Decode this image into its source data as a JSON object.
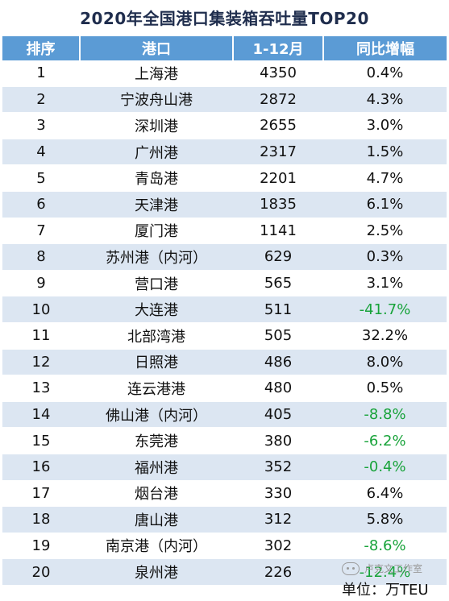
{
  "title": "2020年全国港口集装箱吞吐量TOP20",
  "headers": [
    "排序",
    "港口",
    "1-12月",
    "同比增幅"
  ],
  "rows": [
    {
      "rank": "1",
      "port": "上海港",
      "volume": "4350",
      "growth": "0.4%"
    },
    {
      "rank": "2",
      "port": "宁波舟山港",
      "volume": "2872",
      "growth": "4.3%"
    },
    {
      "rank": "3",
      "port": "深圳港",
      "volume": "2655",
      "growth": "3.0%"
    },
    {
      "rank": "4",
      "port": "广州港",
      "volume": "2317",
      "growth": "1.5%"
    },
    {
      "rank": "5",
      "port": "青岛港",
      "volume": "2201",
      "growth": "4.7%"
    },
    {
      "rank": "6",
      "port": "天津港",
      "volume": "1835",
      "growth": "6.1%"
    },
    {
      "rank": "7",
      "port": "厦门港",
      "volume": "1141",
      "growth": "2.5%"
    },
    {
      "rank": "8",
      "port": "苏州港（内河）",
      "volume": "629",
      "growth": "0.3%"
    },
    {
      "rank": "9",
      "port": "营口港",
      "volume": "565",
      "growth": "3.1%"
    },
    {
      "rank": "10",
      "port": "大连港",
      "volume": "511",
      "growth": "-41.7%"
    },
    {
      "rank": "11",
      "port": "北部湾港",
      "volume": "505",
      "growth": "32.2%"
    },
    {
      "rank": "12",
      "port": "日照港",
      "volume": "486",
      "growth": "8.0%"
    },
    {
      "rank": "13",
      "port": "连云港港",
      "volume": "480",
      "growth": "0.5%"
    },
    {
      "rank": "14",
      "port": "佛山港（内河）",
      "volume": "405",
      "growth": "-8.8%"
    },
    {
      "rank": "15",
      "port": "东莞港",
      "volume": "380",
      "growth": "-6.2%"
    },
    {
      "rank": "16",
      "port": "福州港",
      "volume": "352",
      "growth": "-0.4%"
    },
    {
      "rank": "17",
      "port": "烟台港",
      "volume": "330",
      "growth": "6.4%"
    },
    {
      "rank": "18",
      "port": "唐山港",
      "volume": "312",
      "growth": "5.8%"
    },
    {
      "rank": "19",
      "port": "南京港（内河）",
      "volume": "302",
      "growth": "-8.6%"
    },
    {
      "rank": "20",
      "port": "泉州港",
      "volume": "226",
      "growth": "-12.4%"
    }
  ],
  "unit": "单位：万TEU",
  "watermark": "卢克文工作室",
  "colors": {
    "header_bg": "#5b9bd5",
    "stripe": "#dce6f2",
    "negative": "#18a33a",
    "title": "#1f2d4d"
  }
}
